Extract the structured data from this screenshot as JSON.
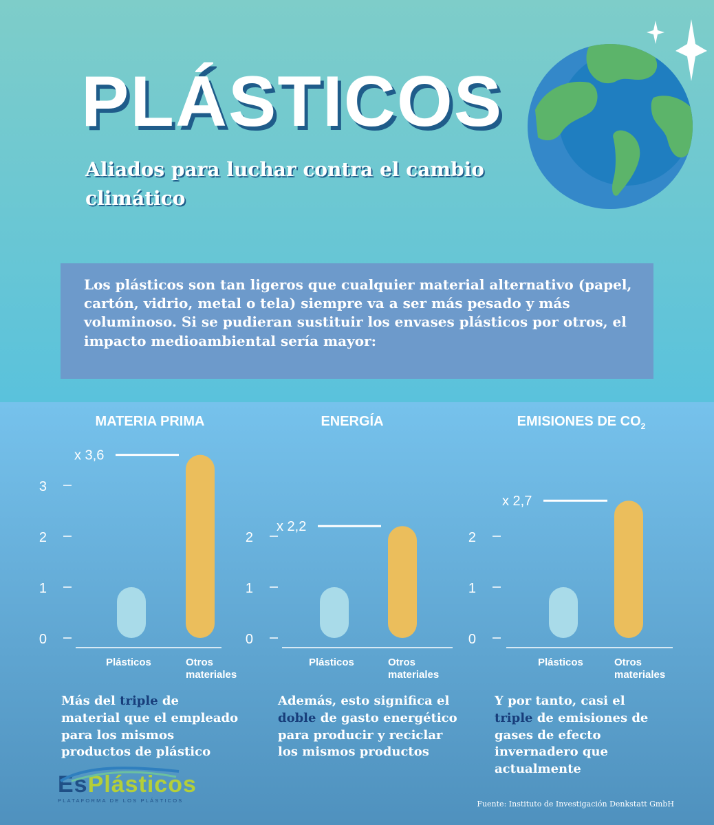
{
  "header": {
    "title": "PLÁSTICOS",
    "subtitle": "Aliados para luchar contra el cambio climático"
  },
  "intro_text": "Los plásticos son tan ligeros que cualquier material alternativo (papel, cartón, vidrio, metal o tela) siempre va a ser más pesado y más voluminoso. Si se pudieran sustituir los envases plásticos por otros, el impacto medioambiental sería mayor:",
  "colors": {
    "bg_top": "#7ecdc9",
    "bg_mid": "#5ac2dc",
    "bg_bottom": "#4f91be",
    "plasticos_bar": "#a9dbe9",
    "otros_bar": "#ebbe5c",
    "highlight": "#173d7a",
    "intro_box": "#6d9acb"
  },
  "chart_data": [
    {
      "type": "bar",
      "title": "MATERIA PRIMA",
      "categories": [
        "Plásticos",
        "Otros materiales"
      ],
      "values": [
        1,
        3.6
      ],
      "annotation": "x 3,6",
      "yticks": [
        0,
        1,
        2,
        3
      ],
      "ylim": [
        0,
        3.6
      ],
      "caption": {
        "before": "Más del ",
        "highlight": "triple",
        "after": " de material que el empleado para los mismos productos de plástico"
      }
    },
    {
      "type": "bar",
      "title": "ENERGÍA",
      "categories": [
        "Plásticos",
        "Otros materiales"
      ],
      "values": [
        1,
        2.2
      ],
      "annotation": "x 2,2",
      "yticks": [
        0,
        1,
        2
      ],
      "ylim": [
        0,
        2.2
      ],
      "caption": {
        "before": "Además, esto significa el ",
        "highlight": "doble",
        "after": " de gasto energético para producir y reciclar los mismos productos"
      }
    },
    {
      "type": "bar",
      "title": "EMISIONES DE CO",
      "title_sub": "2",
      "categories": [
        "Plásticos",
        "Otros materiales"
      ],
      "values": [
        1,
        2.7
      ],
      "annotation": "x 2,7",
      "yticks": [
        0,
        1,
        2
      ],
      "ylim": [
        0,
        2.7
      ],
      "caption": {
        "before": "Y por tanto, casi el ",
        "highlight": "triple",
        "after": " de emisiones de gases de efecto invernadero que actualmente"
      }
    }
  ],
  "footer": {
    "brand_es": "Es",
    "brand_plasticos": "Plásticos",
    "brand_tagline": "PLATAFORMA DE LOS PLÁSTICOS",
    "source": "Fuente: Instituto de Investigación Denkstatt GmbH"
  }
}
